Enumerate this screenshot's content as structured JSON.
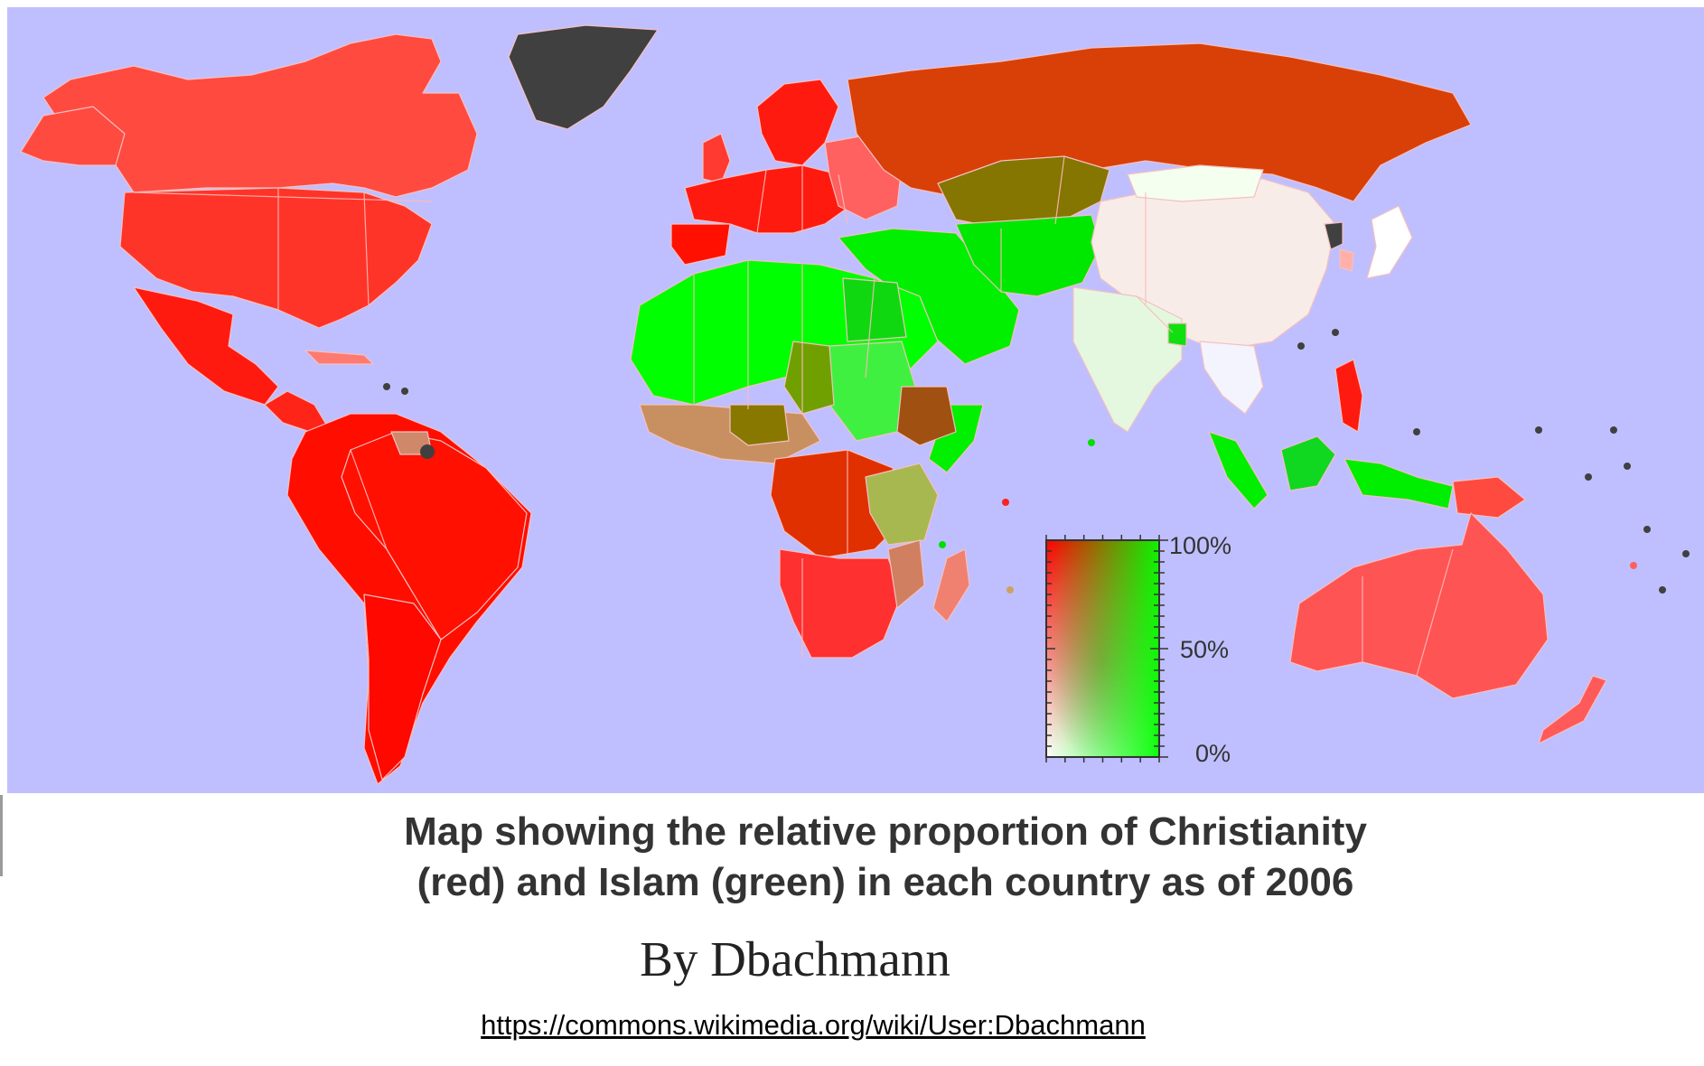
{
  "caption": {
    "line1": "Map showing the relative proportion of Christianity",
    "line2": "(red) and Islam (green) in each country as of 2006"
  },
  "author": "By Dbachmann",
  "source_url": "https://commons.wikimedia.org/wiki/User:Dbachmann",
  "legend": {
    "ticks": [
      "100%",
      "50%",
      "0%"
    ],
    "christianity_color": "#ff0000",
    "islam_color": "#00ff00"
  },
  "colors": {
    "ocean": "#bfbfff",
    "christian_majority": "#ff2a1a",
    "christian_strong": "#ff4040",
    "christian_medium": "#ff5a5a",
    "muslim_majority": "#00ff00",
    "mixed_olive": "#807000",
    "russia": "#d84008",
    "china": "#f8ece8",
    "india": "#e4f8e0",
    "greenland": "#404040",
    "caption_text": "#333333"
  }
}
